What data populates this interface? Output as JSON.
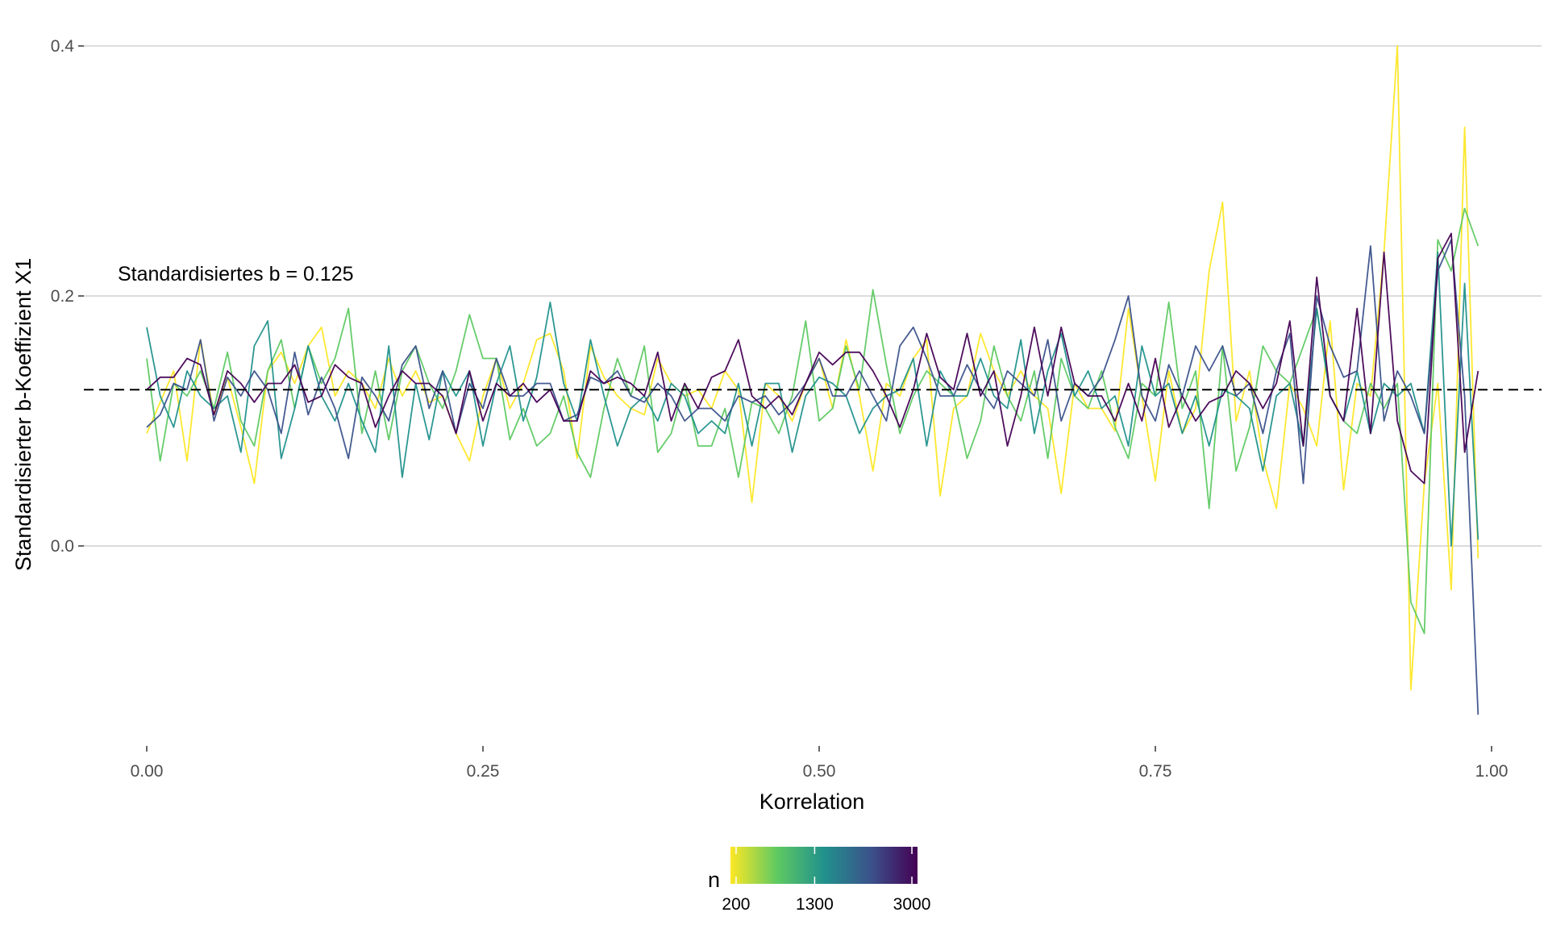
{
  "chart_data": {
    "type": "line",
    "xlabel": "Korrelation",
    "ylabel": "Standardisierter b-Koeffizient X1",
    "xlim": [
      -0.04,
      1.04
    ],
    "ylim": [
      -0.16,
      0.4
    ],
    "x_ticks": [
      0.0,
      0.25,
      0.5,
      0.75,
      1.0
    ],
    "x_tick_labels": [
      "0.00",
      "0.25",
      "0.50",
      "0.75",
      "1.00"
    ],
    "y_ticks": [
      0.0,
      0.2,
      0.4
    ],
    "y_tick_labels": [
      "0.0",
      "0.2",
      "0.4"
    ],
    "grid": "horizontal major lines",
    "reference_line": {
      "y": 0.125,
      "style": "dashed",
      "label": "Standardisiertes b = 0.125"
    },
    "legend": {
      "title": "n",
      "position": "bottom",
      "type": "colorbar",
      "palette": "viridis (reversed: yellow = small n, purple = large n)",
      "tick_labels": [
        "200",
        "1300",
        "3000"
      ],
      "colors": [
        "#fde725",
        "#5ec962",
        "#21918c",
        "#3b528b",
        "#440154"
      ]
    },
    "x": [
      0.0,
      0.01,
      0.02,
      0.03,
      0.04,
      0.05,
      0.06,
      0.07,
      0.08,
      0.09,
      0.1,
      0.11,
      0.12,
      0.13,
      0.14,
      0.15,
      0.16,
      0.17,
      0.18,
      0.19,
      0.2,
      0.21,
      0.22,
      0.23,
      0.24,
      0.25,
      0.26,
      0.27,
      0.28,
      0.29,
      0.3,
      0.31,
      0.32,
      0.33,
      0.34,
      0.35,
      0.36,
      0.37,
      0.38,
      0.39,
      0.4,
      0.41,
      0.42,
      0.43,
      0.44,
      0.45,
      0.46,
      0.47,
      0.48,
      0.49,
      0.5,
      0.51,
      0.52,
      0.53,
      0.54,
      0.55,
      0.56,
      0.57,
      0.58,
      0.59,
      0.6,
      0.61,
      0.62,
      0.63,
      0.64,
      0.65,
      0.66,
      0.67,
      0.68,
      0.69,
      0.7,
      0.71,
      0.72,
      0.73,
      0.74,
      0.75,
      0.76,
      0.77,
      0.78,
      0.79,
      0.8,
      0.81,
      0.82,
      0.83,
      0.84,
      0.85,
      0.86,
      0.87,
      0.88,
      0.89,
      0.9,
      0.91,
      0.92,
      0.93,
      0.94,
      0.95,
      0.96,
      0.97,
      0.98,
      0.99
    ],
    "series": [
      {
        "n": 200,
        "color": "#fde725",
        "values": [
          0.09,
          0.115,
          0.14,
          0.068,
          0.165,
          0.105,
          0.135,
          0.095,
          0.05,
          0.14,
          0.155,
          0.13,
          0.16,
          0.175,
          0.12,
          0.14,
          0.13,
          0.11,
          0.15,
          0.12,
          0.14,
          0.115,
          0.12,
          0.09,
          0.068,
          0.12,
          0.15,
          0.11,
          0.13,
          0.165,
          0.17,
          0.14,
          0.07,
          0.16,
          0.135,
          0.12,
          0.11,
          0.105,
          0.15,
          0.13,
          0.12,
          0.125,
          0.11,
          0.14,
          0.125,
          0.035,
          0.13,
          0.12,
          0.1,
          0.13,
          0.15,
          0.11,
          0.165,
          0.12,
          0.06,
          0.13,
          0.12,
          0.15,
          0.165,
          0.04,
          0.11,
          0.12,
          0.17,
          0.14,
          0.12,
          0.14,
          0.12,
          0.11,
          0.042,
          0.13,
          0.11,
          0.11,
          0.092,
          0.19,
          0.12,
          0.052,
          0.14,
          0.09,
          0.11,
          0.22,
          0.275,
          0.1,
          0.14,
          0.07,
          0.03,
          0.13,
          0.11,
          0.08,
          0.18,
          0.045,
          0.13,
          0.12,
          0.235,
          0.4,
          -0.115,
          0.05,
          0.13,
          -0.035,
          0.335,
          -0.01
        ]
      },
      {
        "n": 700,
        "color": "#5ec962",
        "values": [
          0.15,
          0.068,
          0.13,
          0.12,
          0.14,
          0.11,
          0.155,
          0.1,
          0.08,
          0.14,
          0.165,
          0.11,
          0.16,
          0.13,
          0.15,
          0.19,
          0.09,
          0.14,
          0.085,
          0.14,
          0.16,
          0.13,
          0.11,
          0.14,
          0.185,
          0.15,
          0.15,
          0.085,
          0.11,
          0.08,
          0.09,
          0.12,
          0.075,
          0.055,
          0.11,
          0.15,
          0.12,
          0.16,
          0.075,
          0.09,
          0.13,
          0.08,
          0.08,
          0.11,
          0.055,
          0.115,
          0.11,
          0.09,
          0.12,
          0.18,
          0.1,
          0.11,
          0.16,
          0.125,
          0.205,
          0.145,
          0.09,
          0.12,
          0.14,
          0.13,
          0.12,
          0.07,
          0.1,
          0.16,
          0.12,
          0.1,
          0.14,
          0.07,
          0.15,
          0.12,
          0.11,
          0.14,
          0.095,
          0.07,
          0.13,
          0.12,
          0.195,
          0.11,
          0.14,
          0.03,
          0.16,
          0.06,
          0.095,
          0.16,
          0.14,
          0.13,
          0.16,
          0.19,
          0.12,
          0.1,
          0.09,
          0.13,
          0.11,
          0.13,
          -0.045,
          -0.07,
          0.245,
          0.22,
          0.27,
          0.24
        ]
      },
      {
        "n": 1300,
        "color": "#21918c",
        "values": [
          0.175,
          0.12,
          0.095,
          0.14,
          0.12,
          0.11,
          0.12,
          0.075,
          0.16,
          0.18,
          0.07,
          0.11,
          0.16,
          0.12,
          0.1,
          0.13,
          0.1,
          0.075,
          0.16,
          0.055,
          0.13,
          0.085,
          0.14,
          0.12,
          0.14,
          0.08,
          0.13,
          0.16,
          0.1,
          0.135,
          0.195,
          0.13,
          0.1,
          0.165,
          0.12,
          0.08,
          0.11,
          0.12,
          0.1,
          0.13,
          0.12,
          0.09,
          0.1,
          0.09,
          0.13,
          0.08,
          0.13,
          0.13,
          0.075,
          0.12,
          0.135,
          0.13,
          0.12,
          0.09,
          0.11,
          0.12,
          0.125,
          0.15,
          0.08,
          0.14,
          0.12,
          0.12,
          0.15,
          0.12,
          0.11,
          0.165,
          0.09,
          0.14,
          0.17,
          0.12,
          0.14,
          0.11,
          0.12,
          0.08,
          0.16,
          0.12,
          0.13,
          0.09,
          0.12,
          0.08,
          0.125,
          0.12,
          0.11,
          0.06,
          0.12,
          0.13,
          0.08,
          0.19,
          0.12,
          0.1,
          0.14,
          0.09,
          0.13,
          0.12,
          0.13,
          0.09,
          0.235,
          0.0,
          0.21,
          0.005
        ]
      },
      {
        "n": 2000,
        "color": "#3b528b",
        "values": [
          0.095,
          0.105,
          0.13,
          0.125,
          0.165,
          0.1,
          0.135,
          0.12,
          0.14,
          0.125,
          0.09,
          0.155,
          0.105,
          0.135,
          0.11,
          0.07,
          0.135,
          0.12,
          0.1,
          0.145,
          0.16,
          0.11,
          0.14,
          0.09,
          0.13,
          0.11,
          0.15,
          0.12,
          0.12,
          0.13,
          0.13,
          0.1,
          0.105,
          0.135,
          0.13,
          0.14,
          0.12,
          0.115,
          0.13,
          0.12,
          0.1,
          0.11,
          0.11,
          0.1,
          0.12,
          0.115,
          0.12,
          0.105,
          0.115,
          0.13,
          0.15,
          0.12,
          0.12,
          0.14,
          0.12,
          0.1,
          0.16,
          0.175,
          0.15,
          0.12,
          0.12,
          0.145,
          0.125,
          0.11,
          0.14,
          0.13,
          0.12,
          0.165,
          0.1,
          0.13,
          0.12,
          0.135,
          0.165,
          0.2,
          0.12,
          0.1,
          0.145,
          0.12,
          0.16,
          0.14,
          0.16,
          0.12,
          0.13,
          0.09,
          0.14,
          0.17,
          0.05,
          0.2,
          0.16,
          0.135,
          0.14,
          0.24,
          0.1,
          0.14,
          0.12,
          0.09,
          0.22,
          0.245,
          0.12,
          -0.135
        ]
      },
      {
        "n": 3000,
        "color": "#440154",
        "values": [
          0.125,
          0.135,
          0.135,
          0.15,
          0.145,
          0.105,
          0.14,
          0.13,
          0.115,
          0.13,
          0.13,
          0.145,
          0.115,
          0.12,
          0.145,
          0.135,
          0.13,
          0.095,
          0.12,
          0.14,
          0.13,
          0.13,
          0.12,
          0.09,
          0.14,
          0.1,
          0.13,
          0.12,
          0.13,
          0.115,
          0.125,
          0.1,
          0.1,
          0.14,
          0.13,
          0.135,
          0.13,
          0.12,
          0.155,
          0.1,
          0.13,
          0.11,
          0.135,
          0.14,
          0.165,
          0.12,
          0.11,
          0.12,
          0.105,
          0.13,
          0.155,
          0.145,
          0.155,
          0.155,
          0.14,
          0.12,
          0.095,
          0.125,
          0.17,
          0.135,
          0.125,
          0.17,
          0.12,
          0.14,
          0.08,
          0.12,
          0.175,
          0.12,
          0.175,
          0.13,
          0.12,
          0.12,
          0.1,
          0.13,
          0.1,
          0.15,
          0.095,
          0.12,
          0.1,
          0.115,
          0.12,
          0.14,
          0.13,
          0.11,
          0.13,
          0.18,
          0.08,
          0.215,
          0.12,
          0.1,
          0.19,
          0.09,
          0.235,
          0.1,
          0.06,
          0.05,
          0.23,
          0.25,
          0.075,
          0.14
        ]
      }
    ]
  }
}
